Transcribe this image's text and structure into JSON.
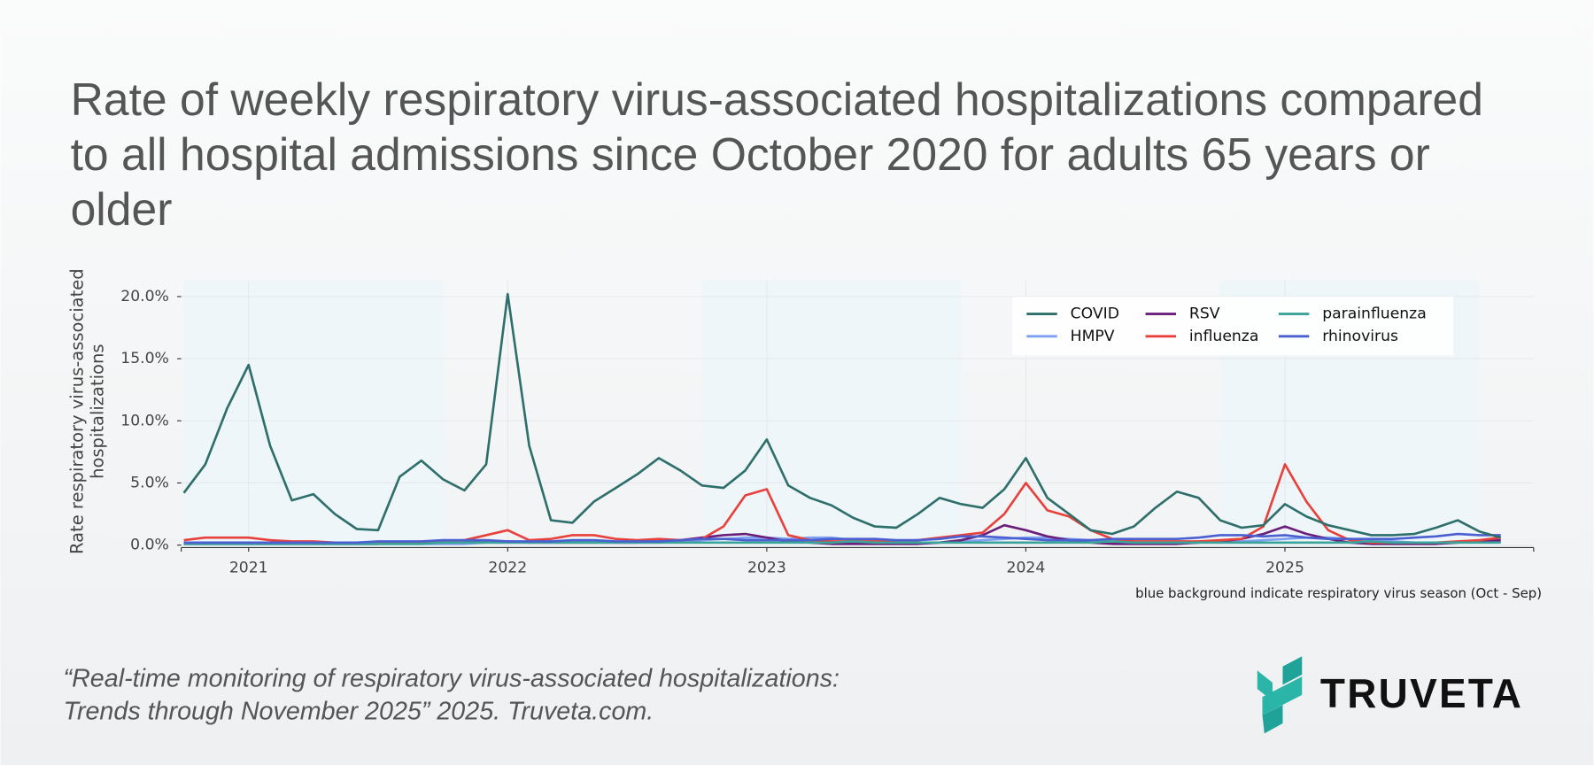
{
  "chart_data": {
    "type": "line",
    "title": "Rate of weekly respiratory virus-associated hospitalizations compared to all hospital admissions since October 2020 for adults 65 years or older",
    "y_label": "Rate respiratory virus-associated hospitalizations",
    "note": "blue background indicate respiratory virus season (Oct - Sep)",
    "seasons": [
      [
        2020.75,
        2021.75
      ],
      [
        2022.75,
        2023.75
      ],
      [
        2024.75,
        2025.75
      ]
    ],
    "season_color": "#eef6f9",
    "grid": true,
    "legend": "upper right",
    "xlim": [
      2020.74,
      2025.96
    ],
    "xticks": [
      2021,
      2022,
      2023,
      2024,
      2025
    ],
    "ylim": [
      -0.2,
      21.3
    ],
    "yticks": [
      {
        "value": 0,
        "label": "0.0%"
      },
      {
        "value": 5,
        "label": "5.0%"
      },
      {
        "value": 10,
        "label": "10.0%"
      },
      {
        "value": 15,
        "label": "15.0%"
      },
      {
        "value": 20,
        "label": "20.0%"
      }
    ],
    "x": [
      2020.75,
      2020.833,
      2020.917,
      2021.0,
      2021.083,
      2021.167,
      2021.25,
      2021.333,
      2021.417,
      2021.5,
      2021.583,
      2021.667,
      2021.75,
      2021.833,
      2021.917,
      2022.0,
      2022.083,
      2022.167,
      2022.25,
      2022.333,
      2022.417,
      2022.5,
      2022.583,
      2022.667,
      2022.75,
      2022.833,
      2022.917,
      2023.0,
      2023.083,
      2023.167,
      2023.25,
      2023.333,
      2023.417,
      2023.5,
      2023.583,
      2023.667,
      2023.75,
      2023.833,
      2023.917,
      2024.0,
      2024.083,
      2024.167,
      2024.25,
      2024.333,
      2024.417,
      2024.5,
      2024.583,
      2024.667,
      2024.75,
      2024.833,
      2024.917,
      2025.0,
      2025.083,
      2025.167,
      2025.25,
      2025.333,
      2025.417,
      2025.5,
      2025.583,
      2025.667,
      2025.75,
      2025.833
    ],
    "series": [
      {
        "name": "COVID",
        "color": "#2e6f6c",
        "values": [
          4.2,
          6.5,
          11,
          14.5,
          8,
          3.6,
          4.1,
          2.5,
          1.3,
          1.2,
          5.5,
          6.8,
          5.3,
          4.4,
          6.5,
          20.2,
          8,
          2.0,
          1.8,
          3.5,
          4.6,
          5.7,
          7.0,
          6.0,
          4.8,
          4.6,
          6.0,
          8.5,
          4.8,
          3.8,
          3.2,
          2.2,
          1.5,
          1.4,
          2.5,
          3.8,
          3.3,
          3.0,
          4.5,
          7.0,
          3.8,
          2.5,
          1.2,
          0.9,
          1.5,
          3.0,
          4.3,
          3.8,
          2.0,
          1.4,
          1.6,
          3.3,
          2.3,
          1.6,
          1.2,
          0.8,
          0.8,
          0.9,
          1.4,
          2.0,
          1.1,
          0.6
        ]
      },
      {
        "name": "HMPV",
        "color": "#7f9ff0",
        "values": [
          0.1,
          0.1,
          0.1,
          0.1,
          0.1,
          0.1,
          0.1,
          0.1,
          0.1,
          0.1,
          0.1,
          0.1,
          0.1,
          0.1,
          0.2,
          0.2,
          0.2,
          0.3,
          0.3,
          0.3,
          0.2,
          0.2,
          0.2,
          0.3,
          0.4,
          0.5,
          0.6,
          0.6,
          0.5,
          0.6,
          0.6,
          0.4,
          0.3,
          0.2,
          0.2,
          0.2,
          0.3,
          0.4,
          0.5,
          0.6,
          0.6,
          0.5,
          0.4,
          0.3,
          0.2,
          0.2,
          0.2,
          0.2,
          0.3,
          0.3,
          0.4,
          0.5,
          0.6,
          0.6,
          0.5,
          0.4,
          0.3,
          0.2,
          0.2,
          0.2,
          0.3,
          0.3
        ]
      },
      {
        "name": "RSV",
        "color": "#6a1f7a",
        "values": [
          0.1,
          0.1,
          0.1,
          0.1,
          0.1,
          0.1,
          0.1,
          0.1,
          0.1,
          0.1,
          0.2,
          0.2,
          0.3,
          0.3,
          0.3,
          0.3,
          0.2,
          0.2,
          0.2,
          0.2,
          0.2,
          0.2,
          0.3,
          0.4,
          0.6,
          0.8,
          0.9,
          0.6,
          0.3,
          0.2,
          0.1,
          0.1,
          0.1,
          0.1,
          0.1,
          0.2,
          0.4,
          0.8,
          1.6,
          1.2,
          0.7,
          0.4,
          0.2,
          0.1,
          0.1,
          0.1,
          0.1,
          0.2,
          0.3,
          0.5,
          0.9,
          1.5,
          0.9,
          0.5,
          0.2,
          0.1,
          0.1,
          0.1,
          0.1,
          0.2,
          0.3,
          0.4
        ]
      },
      {
        "name": "influenza",
        "color": "#e8413c",
        "values": [
          0.4,
          0.6,
          0.6,
          0.6,
          0.4,
          0.3,
          0.3,
          0.2,
          0.2,
          0.2,
          0.2,
          0.2,
          0.3,
          0.4,
          0.8,
          1.2,
          0.4,
          0.5,
          0.8,
          0.8,
          0.5,
          0.4,
          0.5,
          0.4,
          0.5,
          1.5,
          4.0,
          4.5,
          0.8,
          0.4,
          0.3,
          0.3,
          0.3,
          0.3,
          0.4,
          0.6,
          0.8,
          1.0,
          2.5,
          5.0,
          2.8,
          2.3,
          1.2,
          0.5,
          0.3,
          0.3,
          0.3,
          0.3,
          0.4,
          0.5,
          1.5,
          6.5,
          3.5,
          1.2,
          0.4,
          0.2,
          0.2,
          0.2,
          0.2,
          0.3,
          0.4,
          0.6
        ]
      },
      {
        "name": "parainfluenza",
        "color": "#3aa39a",
        "values": [
          0.1,
          0.1,
          0.1,
          0.1,
          0.1,
          0.1,
          0.1,
          0.1,
          0.1,
          0.1,
          0.1,
          0.1,
          0.2,
          0.2,
          0.2,
          0.2,
          0.2,
          0.2,
          0.2,
          0.2,
          0.2,
          0.2,
          0.2,
          0.2,
          0.2,
          0.2,
          0.2,
          0.2,
          0.2,
          0.2,
          0.2,
          0.3,
          0.2,
          0.2,
          0.2,
          0.2,
          0.2,
          0.2,
          0.2,
          0.2,
          0.2,
          0.2,
          0.2,
          0.3,
          0.2,
          0.2,
          0.2,
          0.2,
          0.2,
          0.2,
          0.2,
          0.2,
          0.2,
          0.2,
          0.2,
          0.3,
          0.2,
          0.2,
          0.2,
          0.2,
          0.2,
          0.2
        ]
      },
      {
        "name": "rhinovirus",
        "color": "#4a5fd0",
        "values": [
          0.2,
          0.2,
          0.2,
          0.2,
          0.2,
          0.2,
          0.2,
          0.2,
          0.2,
          0.3,
          0.3,
          0.3,
          0.4,
          0.4,
          0.4,
          0.3,
          0.3,
          0.3,
          0.4,
          0.4,
          0.3,
          0.3,
          0.3,
          0.4,
          0.5,
          0.5,
          0.4,
          0.4,
          0.4,
          0.4,
          0.5,
          0.5,
          0.5,
          0.4,
          0.4,
          0.5,
          0.7,
          0.7,
          0.6,
          0.5,
          0.4,
          0.4,
          0.4,
          0.5,
          0.5,
          0.5,
          0.5,
          0.6,
          0.8,
          0.8,
          0.7,
          0.8,
          0.6,
          0.5,
          0.5,
          0.5,
          0.5,
          0.6,
          0.7,
          0.9,
          0.8,
          0.8
        ]
      }
    ]
  },
  "citation": "“Real-time monitoring of respiratory virus-associated hospitalizations: Trends through November 2025” 2025. Truveta.com.",
  "logo_text": "TRUVETA"
}
